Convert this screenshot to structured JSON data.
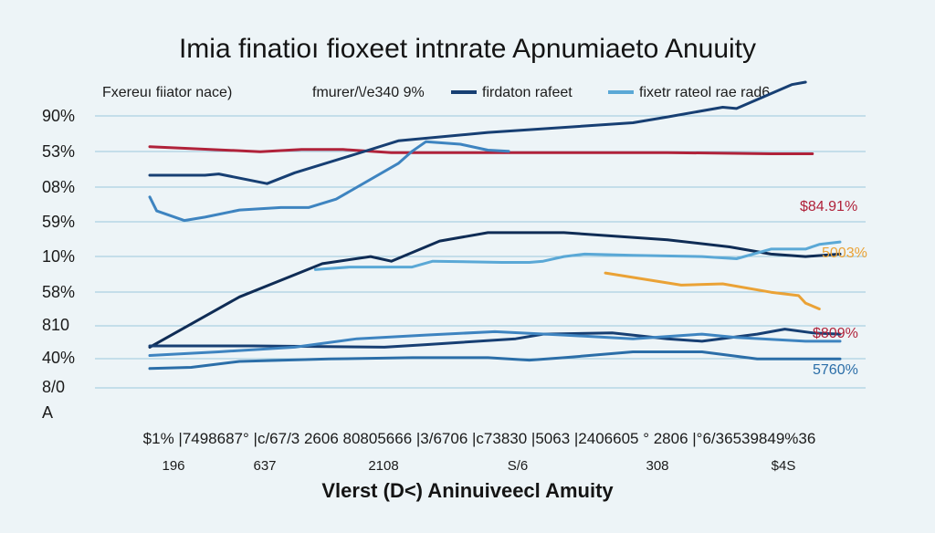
{
  "chart_data": {
    "type": "line",
    "title": "Imia finatioı fioxeet intnrate Apnumiaeto Anuuity",
    "legend": {
      "placement": "top",
      "entries": [
        {
          "label": "Fxereuı fiiator nace)",
          "color": ""
        },
        {
          "label": "fmurer/\\/e340 9%",
          "color": ""
        },
        {
          "label": "firdaton rafeet",
          "color": "#173f73"
        },
        {
          "label": "fixetr rateol rae rad6",
          "color": "#5aa8d6"
        }
      ]
    },
    "y_ticks": [
      "90%",
      "53%",
      "08%",
      "59%",
      "10%",
      "58%",
      "810",
      "40%",
      "8/0",
      "A"
    ],
    "x_ticks": "$1% |7498687° |c/67/3 2606 80805666 |3/6706 |c73830 |5063 |2406605 ° 2806 |°6/36539849%36",
    "x_subticks": [
      "196",
      "637",
      "2108",
      "S/6",
      "308",
      "$4S"
    ],
    "xlabel": "Vlerst (D<) Aninuiveecl Amuity",
    "grid": true,
    "x_range": [
      0,
      100
    ],
    "y_range": [
      0,
      100
    ],
    "colors": {
      "red": "#b0223a",
      "navy": "#173f73",
      "darknavy": "#0f2c55",
      "blue": "#2b6ea8",
      "mid": "#3e84c0",
      "light": "#5aa8d6",
      "orange": "#eaa236"
    },
    "end_labels": [
      {
        "text": "$84.91%",
        "color": "#b0223a"
      },
      {
        "text": "5003%",
        "color": "#eaa236"
      },
      {
        "text": "$809%",
        "color": "#b0223a"
      },
      {
        "text": "5760%",
        "color": "#2b6ea8"
      }
    ],
    "series": [
      {
        "color": "#b0223a",
        "width": 3,
        "points": [
          [
            0,
            79.2
          ],
          [
            16,
            77.6
          ],
          [
            22,
            78.3
          ],
          [
            28,
            78.3
          ],
          [
            35,
            77.3
          ],
          [
            50,
            77.3
          ],
          [
            75,
            77.3
          ],
          [
            90,
            76.9
          ],
          [
            96,
            76.9
          ]
        ]
      },
      {
        "color": "#173f73",
        "width": 3,
        "points": [
          [
            0,
            70.0
          ],
          [
            8,
            70.0
          ],
          [
            10,
            70.4
          ],
          [
            17,
            67.3
          ],
          [
            21,
            70.8
          ],
          [
            30,
            76.9
          ],
          [
            36,
            81.1
          ],
          [
            49,
            83.8
          ],
          [
            70,
            86.9
          ],
          [
            75,
            88.8
          ],
          [
            83,
            91.9
          ],
          [
            85,
            91.5
          ],
          [
            93,
            99.2
          ],
          [
            95,
            100
          ]
        ]
      },
      {
        "color": "#3e84c0",
        "width": 3,
        "points": [
          [
            0,
            63.0
          ],
          [
            1,
            58.5
          ],
          [
            5,
            55.4
          ],
          [
            8,
            56.5
          ],
          [
            13,
            58.8
          ],
          [
            19,
            59.6
          ],
          [
            23,
            59.6
          ],
          [
            27,
            62.3
          ],
          [
            36,
            73.8
          ],
          [
            38,
            77.7
          ],
          [
            40,
            80.8
          ],
          [
            45,
            80.0
          ],
          [
            49,
            78.1
          ],
          [
            52,
            77.7
          ]
        ]
      },
      {
        "color": "#0f2c55",
        "width": 3,
        "points": [
          [
            0,
            14.6
          ],
          [
            13,
            30.8
          ],
          [
            25,
            41.5
          ],
          [
            32,
            43.8
          ],
          [
            35,
            42.3
          ],
          [
            42,
            48.8
          ],
          [
            49,
            51.5
          ],
          [
            60,
            51.5
          ],
          [
            75,
            49.2
          ],
          [
            84,
            46.9
          ],
          [
            90,
            44.6
          ],
          [
            95,
            43.8
          ],
          [
            100,
            44.6
          ]
        ]
      },
      {
        "color": "#5aa8d6",
        "width": 3,
        "points": [
          [
            24,
            39.6
          ],
          [
            29,
            40.4
          ],
          [
            38,
            40.4
          ],
          [
            41,
            42.3
          ],
          [
            51,
            41.9
          ],
          [
            55,
            41.9
          ],
          [
            57,
            42.3
          ],
          [
            60,
            43.8
          ],
          [
            63,
            44.6
          ],
          [
            70,
            44.2
          ],
          [
            80,
            43.8
          ],
          [
            85,
            43.1
          ],
          [
            90,
            46.2
          ],
          [
            95,
            46.2
          ],
          [
            97,
            47.7
          ],
          [
            100,
            48.5
          ]
        ]
      },
      {
        "color": "#eaa236",
        "width": 3,
        "points": [
          [
            66,
            38.5
          ],
          [
            77,
            34.6
          ],
          [
            83,
            35.0
          ],
          [
            90,
            32.3
          ],
          [
            94,
            31.2
          ],
          [
            95,
            28.8
          ],
          [
            97,
            26.9
          ]
        ]
      },
      {
        "color": "#173f73",
        "width": 3,
        "points": [
          [
            0,
            15.0
          ],
          [
            15,
            15.0
          ],
          [
            34,
            14.6
          ],
          [
            40,
            15.4
          ],
          [
            53,
            17.3
          ],
          [
            57,
            18.8
          ],
          [
            67,
            19.2
          ],
          [
            75,
            17.3
          ],
          [
            80,
            16.5
          ],
          [
            88,
            18.8
          ],
          [
            92,
            20.4
          ],
          [
            96,
            19.2
          ],
          [
            100,
            18.8
          ]
        ]
      },
      {
        "color": "#3e84c0",
        "width": 3,
        "points": [
          [
            0,
            11.9
          ],
          [
            10,
            13.1
          ],
          [
            21,
            14.6
          ],
          [
            30,
            17.3
          ],
          [
            40,
            18.5
          ],
          [
            50,
            19.6
          ],
          [
            60,
            18.5
          ],
          [
            70,
            17.3
          ],
          [
            80,
            18.8
          ],
          [
            85,
            17.7
          ],
          [
            95,
            16.5
          ],
          [
            100,
            16.5
          ]
        ]
      },
      {
        "color": "#2b6ea8",
        "width": 3,
        "points": [
          [
            0,
            7.7
          ],
          [
            6,
            8.1
          ],
          [
            13,
            10.0
          ],
          [
            26,
            10.8
          ],
          [
            38,
            11.2
          ],
          [
            49,
            11.2
          ],
          [
            55,
            10.4
          ],
          [
            60,
            11.2
          ],
          [
            70,
            13.1
          ],
          [
            80,
            13.1
          ],
          [
            88,
            10.8
          ],
          [
            98,
            10.8
          ],
          [
            100,
            10.8
          ]
        ]
      }
    ]
  }
}
